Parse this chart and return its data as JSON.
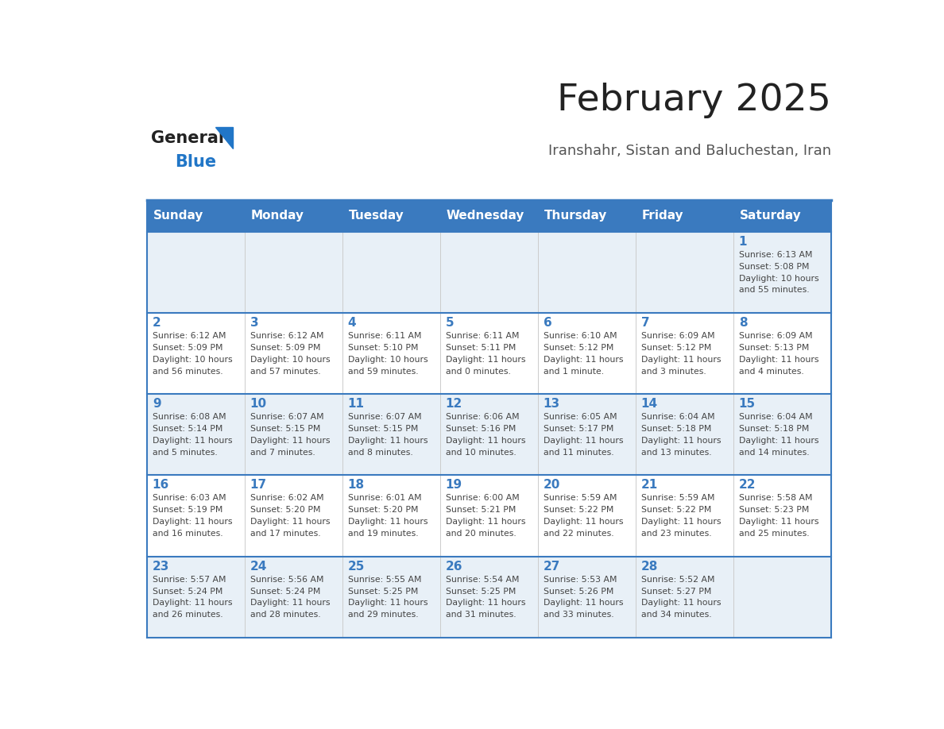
{
  "title": "February 2025",
  "subtitle": "Iranshahr, Sistan and Baluchestan, Iran",
  "header_bg_color": "#3a7abf",
  "header_text_color": "#ffffff",
  "day_names": [
    "Sunday",
    "Monday",
    "Tuesday",
    "Wednesday",
    "Thursday",
    "Friday",
    "Saturday"
  ],
  "row1_bg": "#e8f0f7",
  "row2_bg": "#ffffff",
  "divider_color": "#3a7abf",
  "date_color": "#3a7abf",
  "text_color": "#444444",
  "title_color": "#222222",
  "subtitle_color": "#555555",
  "logo_general_color": "#222222",
  "logo_blue_color": "#2176c7",
  "calendar_data": [
    {
      "day": 1,
      "col": 6,
      "row": 0,
      "sunrise": "6:13 AM",
      "sunset": "5:08 PM",
      "daylight": "10 hours and 55 minutes."
    },
    {
      "day": 2,
      "col": 0,
      "row": 1,
      "sunrise": "6:12 AM",
      "sunset": "5:09 PM",
      "daylight": "10 hours and 56 minutes."
    },
    {
      "day": 3,
      "col": 1,
      "row": 1,
      "sunrise": "6:12 AM",
      "sunset": "5:09 PM",
      "daylight": "10 hours and 57 minutes."
    },
    {
      "day": 4,
      "col": 2,
      "row": 1,
      "sunrise": "6:11 AM",
      "sunset": "5:10 PM",
      "daylight": "10 hours and 59 minutes."
    },
    {
      "day": 5,
      "col": 3,
      "row": 1,
      "sunrise": "6:11 AM",
      "sunset": "5:11 PM",
      "daylight": "11 hours and 0 minutes."
    },
    {
      "day": 6,
      "col": 4,
      "row": 1,
      "sunrise": "6:10 AM",
      "sunset": "5:12 PM",
      "daylight": "11 hours and 1 minute."
    },
    {
      "day": 7,
      "col": 5,
      "row": 1,
      "sunrise": "6:09 AM",
      "sunset": "5:12 PM",
      "daylight": "11 hours and 3 minutes."
    },
    {
      "day": 8,
      "col": 6,
      "row": 1,
      "sunrise": "6:09 AM",
      "sunset": "5:13 PM",
      "daylight": "11 hours and 4 minutes."
    },
    {
      "day": 9,
      "col": 0,
      "row": 2,
      "sunrise": "6:08 AM",
      "sunset": "5:14 PM",
      "daylight": "11 hours and 5 minutes."
    },
    {
      "day": 10,
      "col": 1,
      "row": 2,
      "sunrise": "6:07 AM",
      "sunset": "5:15 PM",
      "daylight": "11 hours and 7 minutes."
    },
    {
      "day": 11,
      "col": 2,
      "row": 2,
      "sunrise": "6:07 AM",
      "sunset": "5:15 PM",
      "daylight": "11 hours and 8 minutes."
    },
    {
      "day": 12,
      "col": 3,
      "row": 2,
      "sunrise": "6:06 AM",
      "sunset": "5:16 PM",
      "daylight": "11 hours and 10 minutes."
    },
    {
      "day": 13,
      "col": 4,
      "row": 2,
      "sunrise": "6:05 AM",
      "sunset": "5:17 PM",
      "daylight": "11 hours and 11 minutes."
    },
    {
      "day": 14,
      "col": 5,
      "row": 2,
      "sunrise": "6:04 AM",
      "sunset": "5:18 PM",
      "daylight": "11 hours and 13 minutes."
    },
    {
      "day": 15,
      "col": 6,
      "row": 2,
      "sunrise": "6:04 AM",
      "sunset": "5:18 PM",
      "daylight": "11 hours and 14 minutes."
    },
    {
      "day": 16,
      "col": 0,
      "row": 3,
      "sunrise": "6:03 AM",
      "sunset": "5:19 PM",
      "daylight": "11 hours and 16 minutes."
    },
    {
      "day": 17,
      "col": 1,
      "row": 3,
      "sunrise": "6:02 AM",
      "sunset": "5:20 PM",
      "daylight": "11 hours and 17 minutes."
    },
    {
      "day": 18,
      "col": 2,
      "row": 3,
      "sunrise": "6:01 AM",
      "sunset": "5:20 PM",
      "daylight": "11 hours and 19 minutes."
    },
    {
      "day": 19,
      "col": 3,
      "row": 3,
      "sunrise": "6:00 AM",
      "sunset": "5:21 PM",
      "daylight": "11 hours and 20 minutes."
    },
    {
      "day": 20,
      "col": 4,
      "row": 3,
      "sunrise": "5:59 AM",
      "sunset": "5:22 PM",
      "daylight": "11 hours and 22 minutes."
    },
    {
      "day": 21,
      "col": 5,
      "row": 3,
      "sunrise": "5:59 AM",
      "sunset": "5:22 PM",
      "daylight": "11 hours and 23 minutes."
    },
    {
      "day": 22,
      "col": 6,
      "row": 3,
      "sunrise": "5:58 AM",
      "sunset": "5:23 PM",
      "daylight": "11 hours and 25 minutes."
    },
    {
      "day": 23,
      "col": 0,
      "row": 4,
      "sunrise": "5:57 AM",
      "sunset": "5:24 PM",
      "daylight": "11 hours and 26 minutes."
    },
    {
      "day": 24,
      "col": 1,
      "row": 4,
      "sunrise": "5:56 AM",
      "sunset": "5:24 PM",
      "daylight": "11 hours and 28 minutes."
    },
    {
      "day": 25,
      "col": 2,
      "row": 4,
      "sunrise": "5:55 AM",
      "sunset": "5:25 PM",
      "daylight": "11 hours and 29 minutes."
    },
    {
      "day": 26,
      "col": 3,
      "row": 4,
      "sunrise": "5:54 AM",
      "sunset": "5:25 PM",
      "daylight": "11 hours and 31 minutes."
    },
    {
      "day": 27,
      "col": 4,
      "row": 4,
      "sunrise": "5:53 AM",
      "sunset": "5:26 PM",
      "daylight": "11 hours and 33 minutes."
    },
    {
      "day": 28,
      "col": 5,
      "row": 4,
      "sunrise": "5:52 AM",
      "sunset": "5:27 PM",
      "daylight": "11 hours and 34 minutes."
    }
  ]
}
